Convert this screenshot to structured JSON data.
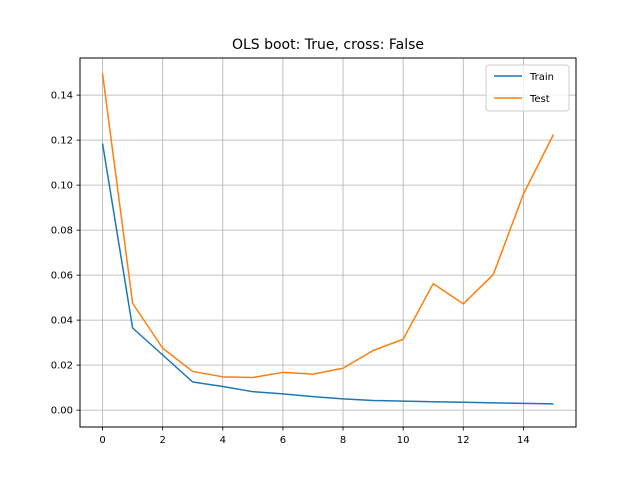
{
  "chart_data": {
    "type": "line",
    "title": "OLS boot: True, cross: False",
    "xlabel": "",
    "ylabel": "",
    "x": [
      0,
      1,
      2,
      3,
      4,
      5,
      6,
      7,
      8,
      9,
      10,
      11,
      12,
      13,
      14,
      15
    ],
    "xlim": [
      -0.75,
      15.75
    ],
    "ylim": [
      -0.0075,
      0.1565
    ],
    "xticks": [
      0,
      2,
      4,
      6,
      8,
      10,
      12,
      14
    ],
    "xtick_labels": [
      "0",
      "2",
      "4",
      "6",
      "8",
      "10",
      "12",
      "14"
    ],
    "yticks": [
      0.0,
      0.02,
      0.04,
      0.06,
      0.08,
      0.1,
      0.12,
      0.14
    ],
    "ytick_labels": [
      "0.00",
      "0.02",
      "0.04",
      "0.06",
      "0.08",
      "0.10",
      "0.12",
      "0.14"
    ],
    "grid": true,
    "legend_position": "top-right",
    "series": [
      {
        "name": "Train",
        "color": "#1f77b4",
        "values": [
          0.1185,
          0.0365,
          0.0245,
          0.0125,
          0.0105,
          0.0082,
          0.0072,
          0.006,
          0.005,
          0.0043,
          0.004,
          0.0037,
          0.0035,
          0.0032,
          0.003,
          0.0028
        ]
      },
      {
        "name": "Test",
        "color": "#ff7f0e",
        "values": [
          0.1495,
          0.0475,
          0.0275,
          0.0172,
          0.0148,
          0.0145,
          0.0168,
          0.016,
          0.0186,
          0.0265,
          0.0315,
          0.0562,
          0.0472,
          0.0603,
          0.096,
          0.1225
        ]
      }
    ]
  }
}
